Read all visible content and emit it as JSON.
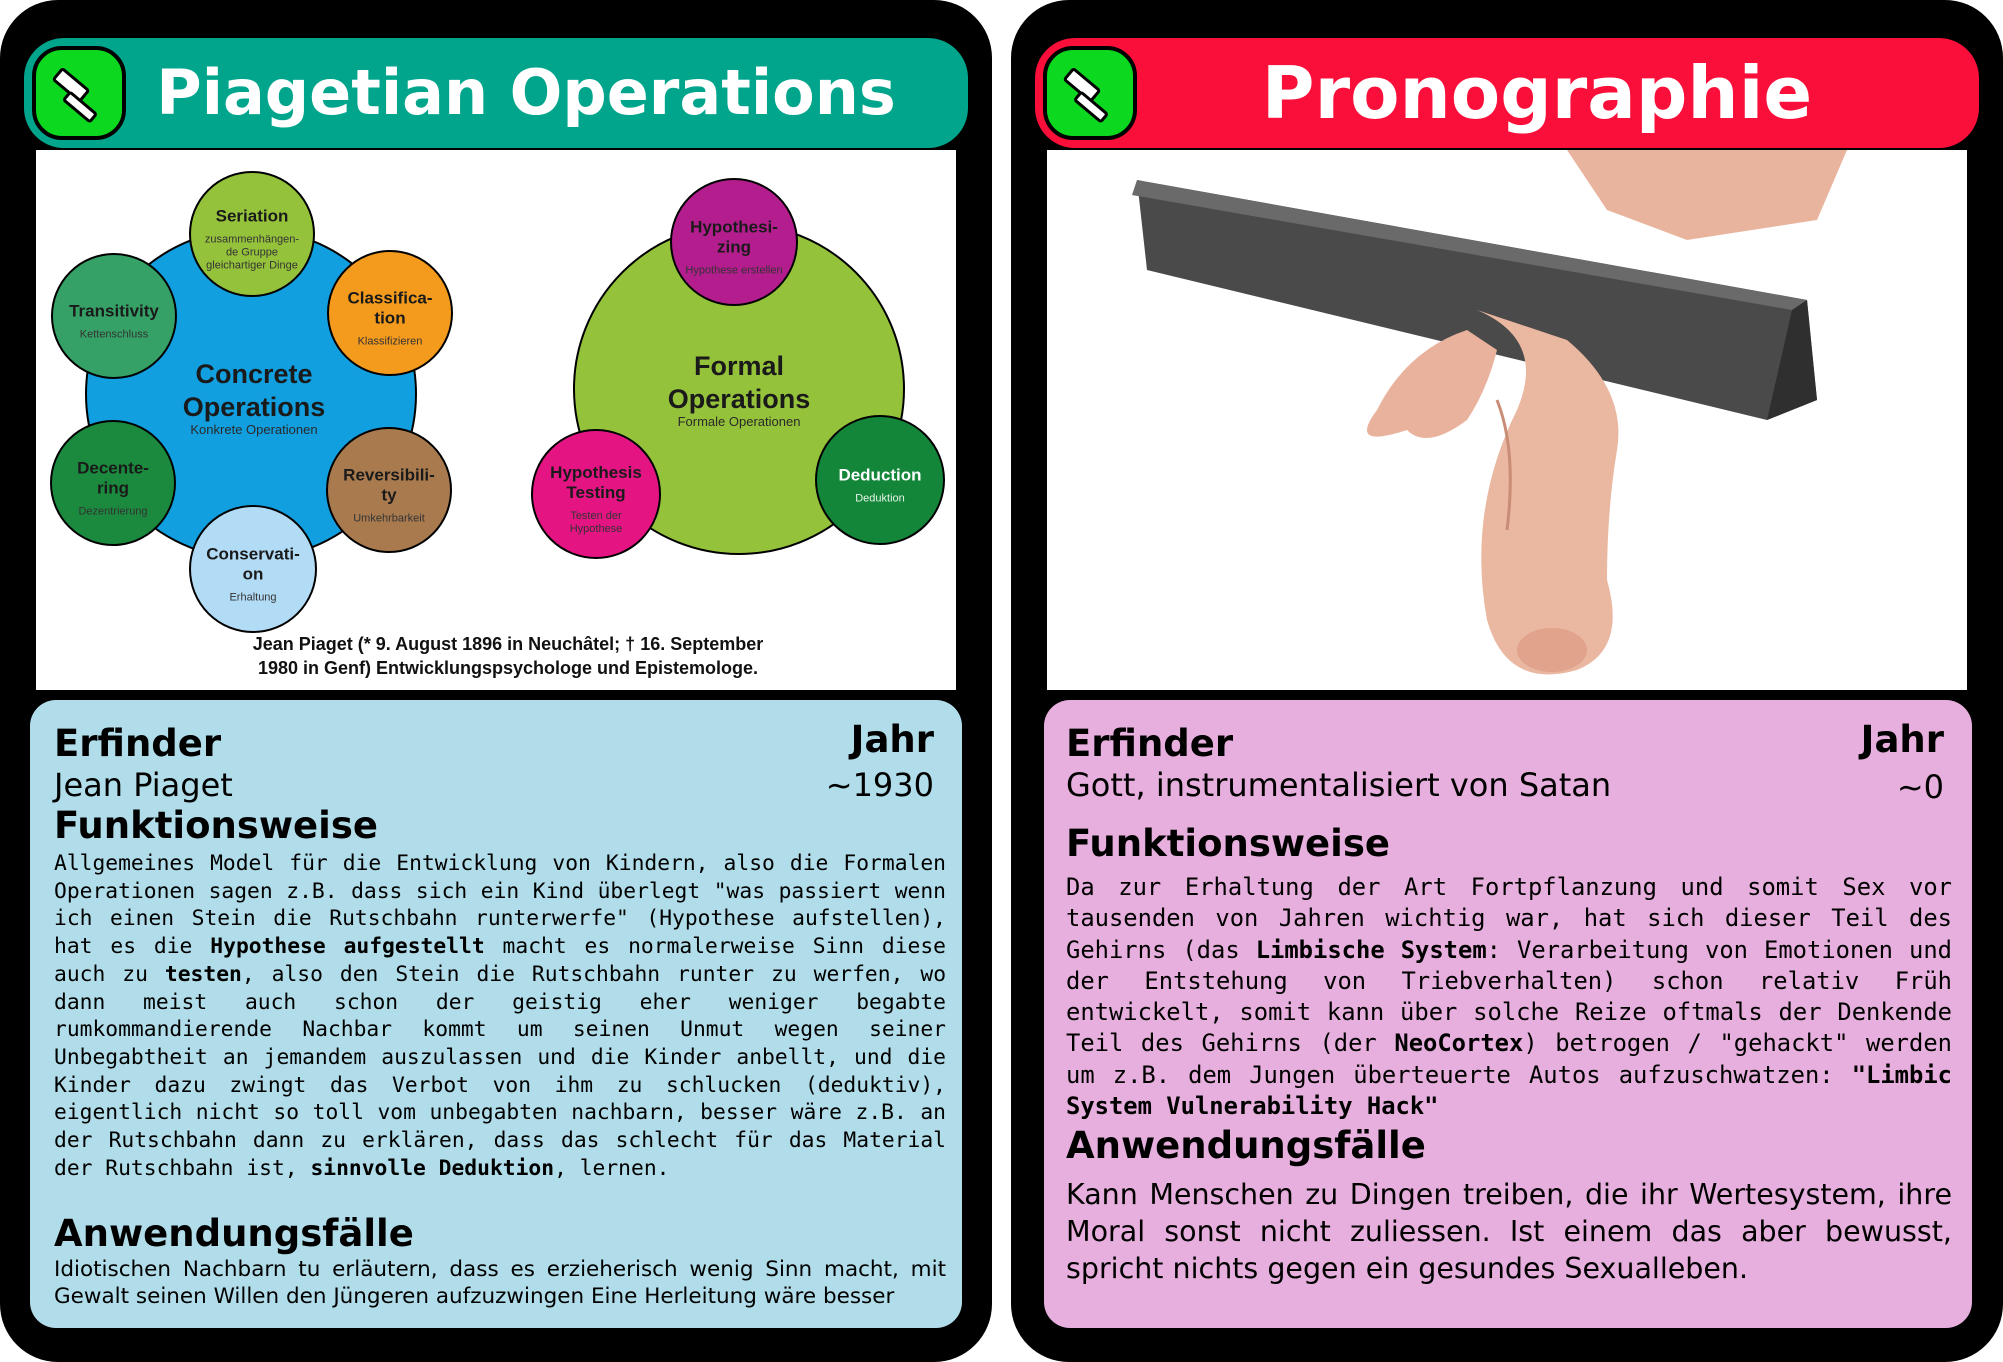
{
  "colors": {
    "card_bg": "#000000",
    "banner_left": "#00a58b",
    "banner_right": "#f90f3a",
    "tool_badge": "#0bd81e",
    "info_left": "#b0dde9",
    "info_right": "#e7afdd",
    "blue_circle": "#119fe0",
    "formal_circle": "#95c23b"
  },
  "left_card": {
    "title": "Piagetian Operations",
    "icon": "hammer-icon",
    "diagram": {
      "concrete_center": {
        "title_line1": "Concrete",
        "title_line2": "Operations",
        "subtitle": "Konkrete Operationen"
      },
      "concrete_items": [
        {
          "name_lines": [
            "Seriation"
          ],
          "sub_lines": [
            "zusammenhängen-",
            "de Gruppe",
            "gleichartiger Dinge"
          ],
          "color": "#95c23b"
        },
        {
          "name_lines": [
            "Classifica-",
            "tion"
          ],
          "sub_lines": [
            "Klassifizieren"
          ],
          "color": "#f49b1d"
        },
        {
          "name_lines": [
            "Reversibili-",
            "ty"
          ],
          "sub_lines": [
            "Umkehrbarkeit"
          ],
          "color": "#a87a4d"
        },
        {
          "name_lines": [
            "Conservati-",
            "on"
          ],
          "sub_lines": [
            "Erhaltung"
          ],
          "color": "#b2dbf6"
        },
        {
          "name_lines": [
            "Decente-",
            "ring"
          ],
          "sub_lines": [
            "Dezentrierung"
          ],
          "color": "#1b8a3e"
        },
        {
          "name_lines": [
            "Transitivity"
          ],
          "sub_lines": [
            "Kettenschluss"
          ],
          "color": "#35a166"
        }
      ],
      "formal_center": {
        "title_line1": "Formal",
        "title_line2": "Operations",
        "subtitle": "Formale Operationen"
      },
      "formal_items": [
        {
          "name_lines": [
            "Hypothesi-",
            "zing"
          ],
          "sub_lines": [
            "Hypothese erstellen"
          ],
          "color": "#b41d8e"
        },
        {
          "name_lines": [
            "Deduction"
          ],
          "sub_lines": [
            "Deduktion"
          ],
          "color": "#14863a",
          "light_text": true
        },
        {
          "name_lines": [
            "Hypothesis",
            "Testing"
          ],
          "sub_lines": [
            "Testen der",
            "Hypothese"
          ],
          "color": "#e41583"
        }
      ],
      "caption_line1": "Jean Piaget (* 9. August 1896 in Neuchâtel; † 16. September",
      "caption_line2": "1980 in Genf) Entwicklungspsychologe und Epistemologe."
    },
    "erfinder_label": "Erfinder",
    "erfinder_value": "Jean Piaget",
    "jahr_label": "Jahr",
    "jahr_value": "~1930",
    "funktion_label": "Funktionsweise",
    "funktion_parts": [
      {
        "text": "Allgemeines Model für die Entwicklung von Kindern, also die Formalen Operationen sagen z.B. dass sich ein Kind überlegt \"was passiert wenn ich einen Stein die Rutschbahn runterwerfe\" (Hypothese aufstellen), hat es die ",
        "bold": false
      },
      {
        "text": "Hypothese aufgestellt",
        "bold": true
      },
      {
        "text": " macht es normalerweise Sinn diese auch zu ",
        "bold": false
      },
      {
        "text": "testen",
        "bold": true
      },
      {
        "text": ", also den Stein die Rutschbahn runter zu werfen, wo dann meist auch schon der geistig eher weniger begabte rumkommandierende Nachbar kommt um seinen Unmut wegen seiner Unbegabtheit an jemandem auszulassen und die Kinder anbellt, und die Kinder dazu zwingt das Verbot von ihm zu schlucken (deduktiv), eigentlich nicht so toll vom unbegabten nachbarn, besser wäre z.B. an der Rutschbahn dann zu erklären, dass das schlecht für das Material der Rutschbahn ist, ",
        "bold": false
      },
      {
        "text": "sinnvolle Deduktion",
        "bold": true
      },
      {
        "text": ", lernen.",
        "bold": false
      }
    ],
    "anwendung_label": "Anwendungsfälle",
    "anwendung_text": "Idiotischen Nachbarn tu erläutern, dass es erzieherisch wenig Sinn macht, mit Gewalt seinen Willen den Jüngeren aufzuzwingen Eine Herleitung wäre besser"
  },
  "right_card": {
    "title": "Pronographie",
    "icon": "hammer-icon",
    "erfinder_label": "Erfinder",
    "erfinder_value": "Gott, instrumentalisiert von Satan",
    "jahr_label": "Jahr",
    "jahr_value": "~0",
    "funktion_label": "Funktionsweise",
    "funktion_parts": [
      {
        "text": "Da zur Erhaltung der Art Fortpflanzung und somit Sex vor tausenden von Jahren wichtig war, hat sich dieser Teil des Gehirns (das ",
        "bold": false
      },
      {
        "text": "Limbische System",
        "bold": true
      },
      {
        "text": ": Verarbeitung von Emotionen und der Entstehung von Triebverhalten) schon relativ Früh entwickelt, somit kann über solche Reize oftmals der Denkende Teil des Gehirns (der ",
        "bold": false
      },
      {
        "text": "NeoCortex",
        "bold": true
      },
      {
        "text": ") betrogen / \"gehackt\" werden um z.B. dem Jungen überteuerte Autos aufzuschwatzen: ",
        "bold": false
      },
      {
        "text": "\"Limbic System Vulnerability Hack\"",
        "bold": true
      }
    ],
    "anwendung_label": "Anwendungsfälle",
    "anwendung_text": "Kann Menschen zu Dingen treiben, die ihr Wertesystem, ihre Moral sonst nicht zuliessen. Ist einem das aber bewusst, spricht nichts gegen ein gesundes Sexualleben."
  }
}
